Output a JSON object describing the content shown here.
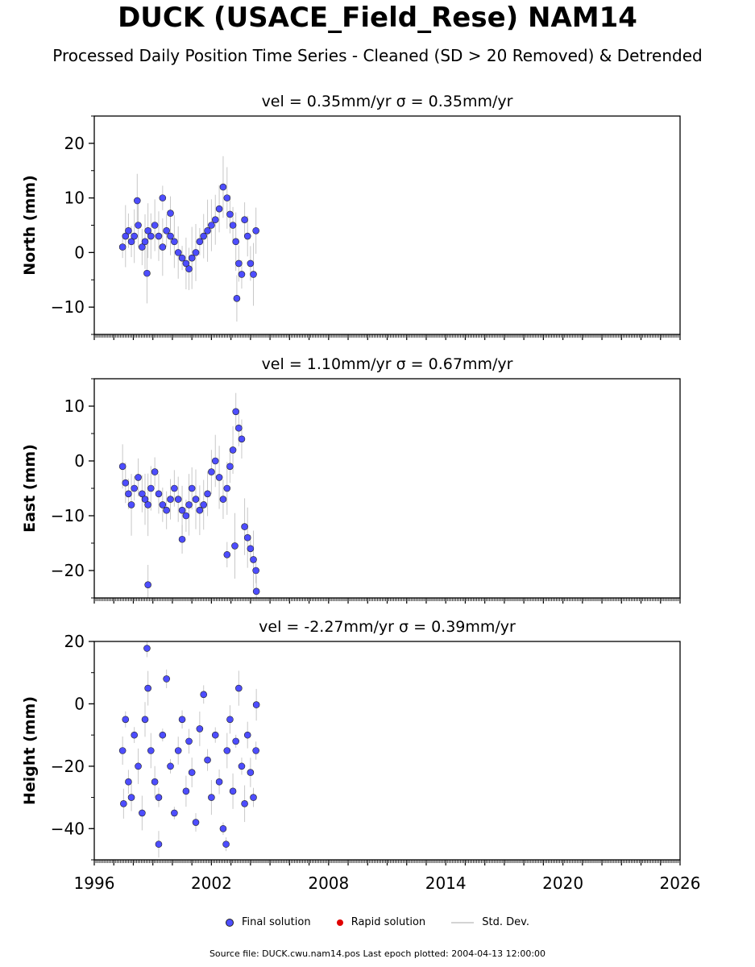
{
  "title": "DUCK (USACE_Field_Rese) NAM14",
  "subtitle": "Processed Daily Position Time Series - Cleaned (SD > 20 Removed) & Detrended",
  "footer": "Source file: DUCK.cwu.nam14.pos  Last epoch plotted: 2004-04-13 12:00:00",
  "legend": {
    "final": "Final solution",
    "rapid": "Rapid solution",
    "std": "Std. Dev."
  },
  "colors": {
    "final_fill": "#4d4dff",
    "final_edge": "#222222",
    "rapid": "#e00000",
    "std": "#b0b0b0"
  },
  "chart_data": [
    {
      "type": "scatter",
      "panel_title": "vel = 0.35mm/yr   σ = 0.35mm/yr",
      "ylabel": "North (mm)",
      "xlim": [
        1996,
        2026
      ],
      "ylim": [
        -15,
        25
      ],
      "yticks": [
        -10,
        0,
        10,
        20
      ],
      "ytick_labels": [
        "−10",
        "0",
        "10",
        "20"
      ],
      "series": [
        {
          "name": "Final solution",
          "x": [
            1997.45,
            1997.6,
            1997.75,
            1997.9,
            1998.05,
            1998.25,
            1998.45,
            1998.6,
            1998.75,
            1998.9,
            1999.1,
            1999.3,
            1999.5,
            1999.7,
            1999.9,
            2000.1,
            2000.3,
            2000.5,
            2000.7,
            2000.85,
            2001.0,
            2001.2,
            2001.4,
            2001.6,
            2001.8,
            2002.0,
            2002.2,
            2002.4,
            2002.6,
            2002.8,
            2002.95,
            2003.1,
            2003.25,
            2003.4,
            2003.55,
            2003.7,
            2003.85,
            2004.0,
            2004.15,
            2004.28,
            1998.2,
            1998.7,
            1999.5,
            1999.9,
            2003.3
          ],
          "y": [
            1,
            3,
            4,
            2,
            3,
            5,
            1,
            2,
            4,
            3,
            5,
            3,
            1,
            4,
            3,
            2,
            0,
            -1,
            -2,
            -3,
            -1,
            0,
            2,
            3,
            4,
            5,
            6,
            8,
            12,
            10,
            7,
            5,
            2,
            -2,
            -4,
            6,
            3,
            -2,
            -4,
            4,
            9.5,
            -3.8,
            10,
            7.2,
            -8.4
          ]
        }
      ],
      "std_bands": true
    },
    {
      "type": "scatter",
      "panel_title": "vel = 1.10mm/yr   σ = 0.67mm/yr",
      "ylabel": "East (mm)",
      "xlim": [
        1996,
        2026
      ],
      "ylim": [
        -25,
        15
      ],
      "yticks": [
        -20,
        -10,
        0,
        10
      ],
      "ytick_labels": [
        "−20",
        "−10",
        "0",
        "10"
      ],
      "series": [
        {
          "name": "Final solution",
          "x": [
            1997.45,
            1997.6,
            1997.75,
            1997.9,
            1998.05,
            1998.25,
            1998.45,
            1998.6,
            1998.75,
            1998.9,
            1999.1,
            1999.3,
            1999.5,
            1999.7,
            1999.9,
            2000.1,
            2000.3,
            2000.5,
            2000.7,
            2000.85,
            2001.0,
            2001.2,
            2001.4,
            2001.6,
            2001.8,
            2002.0,
            2002.2,
            2002.4,
            2002.6,
            2002.8,
            2002.95,
            2003.1,
            2003.25,
            2003.4,
            2003.55,
            2003.7,
            2003.85,
            2004.0,
            2004.15,
            2004.28,
            1998.75,
            2000.5,
            2002.8,
            2003.2,
            2004.3
          ],
          "y": [
            -1,
            -4,
            -6,
            -8,
            -5,
            -3,
            -6,
            -7,
            -8,
            -5,
            -2,
            -6,
            -8,
            -9,
            -7,
            -5,
            -7,
            -9,
            -10,
            -8,
            -5,
            -7,
            -9,
            -8,
            -6,
            -2,
            0,
            -3,
            -7,
            -5,
            -1,
            2,
            9,
            6,
            4,
            -12,
            -14,
            -16,
            -18,
            -20,
            -22.6,
            -14.3,
            -17.1,
            -15.5,
            -23.8
          ]
        }
      ],
      "std_bands": true
    },
    {
      "type": "scatter",
      "panel_title": "vel = -2.27mm/yr   σ = 0.39mm/yr",
      "ylabel": "Height (mm)",
      "xlim": [
        1996,
        2026
      ],
      "ylim": [
        -50,
        20
      ],
      "yticks": [
        -40,
        -20,
        0,
        20
      ],
      "ytick_labels": [
        "−40",
        "−20",
        "0",
        "20"
      ],
      "xticks": [
        1996,
        2002,
        2008,
        2014,
        2020,
        2026
      ],
      "xtick_labels": [
        "1996",
        "2002",
        "2008",
        "2014",
        "2020",
        "2026"
      ],
      "series": [
        {
          "name": "Final solution",
          "x": [
            1997.45,
            1997.6,
            1997.75,
            1997.9,
            1998.05,
            1998.25,
            1998.45,
            1998.6,
            1998.75,
            1998.9,
            1999.1,
            1999.3,
            1999.5,
            1999.7,
            1999.9,
            2000.1,
            2000.3,
            2000.5,
            2000.7,
            2000.85,
            2001.0,
            2001.2,
            2001.4,
            2001.6,
            2001.8,
            2002.0,
            2002.2,
            2002.4,
            2002.6,
            2002.8,
            2002.95,
            2003.1,
            2003.25,
            2003.4,
            2003.55,
            2003.7,
            2003.85,
            2004.0,
            2004.15,
            2004.28,
            1998.7,
            1999.3,
            2002.75,
            2004.3,
            1997.5
          ],
          "y": [
            -15,
            -5,
            -25,
            -30,
            -10,
            -20,
            -35,
            -5,
            5,
            -15,
            -25,
            -30,
            -10,
            8,
            -20,
            -35,
            -15,
            -5,
            -28,
            -12,
            -22,
            -38,
            -8,
            3,
            -18,
            -30,
            -10,
            -25,
            -40,
            -15,
            -5,
            -28,
            -12,
            5,
            -20,
            -32,
            -10,
            -22,
            -30,
            -15,
            17.8,
            -45,
            -45,
            -0.3,
            -32
          ]
        }
      ],
      "std_bands": true
    }
  ]
}
